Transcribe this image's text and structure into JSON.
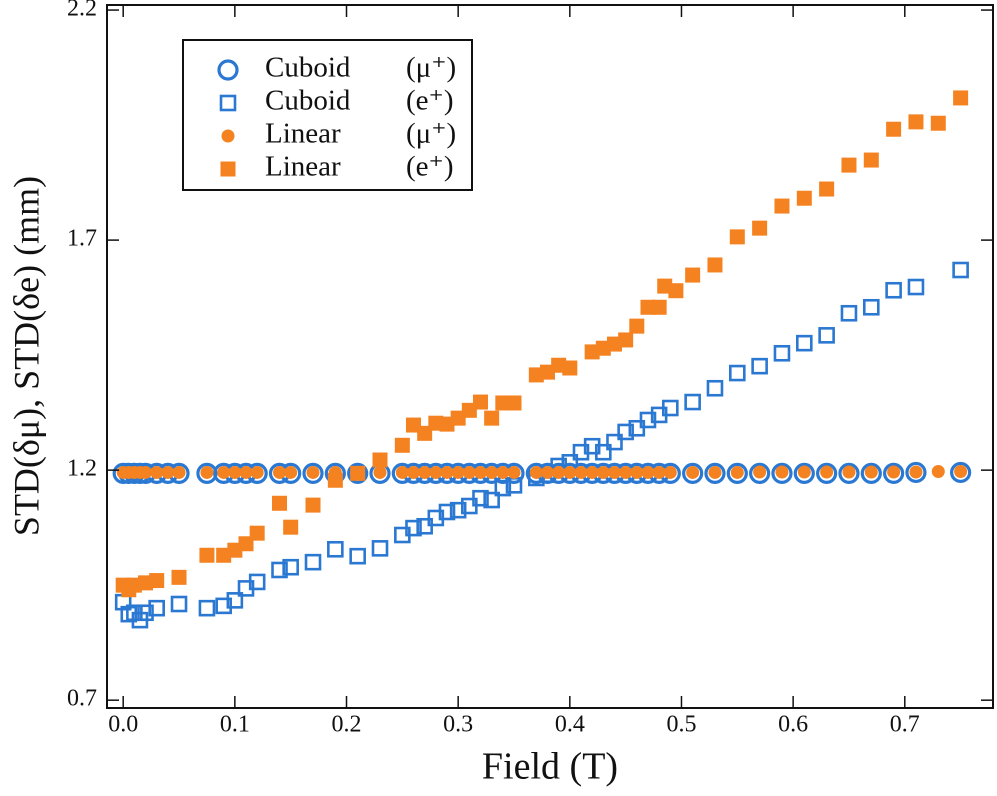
{
  "chart_data": {
    "type": "scatter",
    "xlabel": "Field (T)",
    "ylabel": "STD(δμ), STD(δe) (mm)",
    "xlim": [
      -0.0145,
      0.779
    ],
    "ylim": [
      0.683,
      2.211
    ],
    "xticks": [
      {
        "value": 0,
        "label": "0.0"
      },
      0.1,
      0.2,
      0.3,
      0.4,
      0.5,
      0.6,
      0.7
    ],
    "yticks": [
      0.7,
      1.2,
      1.7,
      2.2
    ],
    "legend": "upper left",
    "series": [
      {
        "name": "Cuboid",
        "particle": "(e⁺)",
        "color": "#2a78d2",
        "marker": "square",
        "filled": false,
        "x": [
          0,
          0.005,
          0.01,
          0.015,
          0.02,
          0.03,
          0.05,
          0.075,
          0.09,
          0.1,
          0.11,
          0.12,
          0.14,
          0.15,
          0.17,
          0.19,
          0.21,
          0.23,
          0.25,
          0.26,
          0.27,
          0.28,
          0.29,
          0.3,
          0.31,
          0.32,
          0.33,
          0.34,
          0.35,
          0.37,
          0.38,
          0.39,
          0.4,
          0.41,
          0.42,
          0.43,
          0.44,
          0.45,
          0.46,
          0.47,
          0.48,
          0.49,
          0.51,
          0.53,
          0.55,
          0.57,
          0.59,
          0.61,
          0.63,
          0.65,
          0.67,
          0.69,
          0.71,
          0.75
        ],
        "values": [
          0.913,
          0.887,
          0.89,
          0.874,
          0.89,
          0.9,
          0.909,
          0.9,
          0.905,
          0.917,
          0.943,
          0.957,
          0.983,
          0.989,
          1.0,
          1.028,
          1.013,
          1.03,
          1.059,
          1.074,
          1.078,
          1.096,
          1.109,
          1.113,
          1.122,
          1.139,
          1.135,
          1.161,
          1.167,
          1.183,
          1.19,
          1.209,
          1.217,
          1.239,
          1.252,
          1.239,
          1.261,
          1.283,
          1.291,
          1.309,
          1.32,
          1.335,
          1.348,
          1.378,
          1.411,
          1.426,
          1.454,
          1.476,
          1.493,
          1.541,
          1.554,
          1.591,
          1.598,
          1.635
        ]
      },
      {
        "name": "Cuboid",
        "particle": "(μ⁺)",
        "color": "#2a78d2",
        "marker": "circle",
        "filled": false,
        "x": [
          0,
          0.005,
          0.01,
          0.015,
          0.02,
          0.03,
          0.04,
          0.05,
          0.075,
          0.09,
          0.1,
          0.11,
          0.12,
          0.14,
          0.15,
          0.17,
          0.19,
          0.21,
          0.23,
          0.25,
          0.26,
          0.27,
          0.28,
          0.29,
          0.3,
          0.31,
          0.32,
          0.33,
          0.34,
          0.35,
          0.37,
          0.38,
          0.39,
          0.4,
          0.41,
          0.42,
          0.43,
          0.44,
          0.45,
          0.46,
          0.47,
          0.48,
          0.49,
          0.51,
          0.53,
          0.55,
          0.57,
          0.59,
          0.61,
          0.63,
          0.65,
          0.67,
          0.69,
          0.71,
          0.75
        ],
        "values": [
          1.193,
          1.193,
          1.193,
          1.193,
          1.193,
          1.193,
          1.193,
          1.193,
          1.193,
          1.193,
          1.193,
          1.193,
          1.193,
          1.193,
          1.193,
          1.193,
          1.193,
          1.193,
          1.193,
          1.193,
          1.193,
          1.193,
          1.193,
          1.193,
          1.193,
          1.193,
          1.193,
          1.193,
          1.193,
          1.193,
          1.193,
          1.193,
          1.193,
          1.193,
          1.193,
          1.193,
          1.193,
          1.193,
          1.193,
          1.193,
          1.193,
          1.193,
          1.193,
          1.193,
          1.193,
          1.193,
          1.193,
          1.193,
          1.193,
          1.193,
          1.193,
          1.193,
          1.193,
          1.195,
          1.195
        ]
      },
      {
        "name": "Linear",
        "particle": "(μ⁺)",
        "color": "#f58220",
        "marker": "circle",
        "filled": true,
        "x": [
          0,
          0.005,
          0.01,
          0.015,
          0.02,
          0.03,
          0.04,
          0.05,
          0.075,
          0.09,
          0.1,
          0.11,
          0.12,
          0.14,
          0.15,
          0.17,
          0.19,
          0.21,
          0.23,
          0.25,
          0.26,
          0.27,
          0.28,
          0.29,
          0.3,
          0.31,
          0.32,
          0.33,
          0.34,
          0.35,
          0.37,
          0.38,
          0.39,
          0.4,
          0.41,
          0.42,
          0.43,
          0.44,
          0.45,
          0.46,
          0.47,
          0.48,
          0.49,
          0.51,
          0.53,
          0.55,
          0.57,
          0.59,
          0.61,
          0.63,
          0.65,
          0.67,
          0.69,
          0.71,
          0.73,
          0.75
        ],
        "values": [
          1.195,
          1.195,
          1.195,
          1.195,
          1.195,
          1.195,
          1.195,
          1.195,
          1.195,
          1.195,
          1.195,
          1.195,
          1.195,
          1.195,
          1.195,
          1.195,
          1.195,
          1.195,
          1.195,
          1.195,
          1.195,
          1.195,
          1.195,
          1.195,
          1.195,
          1.195,
          1.195,
          1.195,
          1.195,
          1.195,
          1.195,
          1.195,
          1.195,
          1.195,
          1.195,
          1.195,
          1.195,
          1.195,
          1.195,
          1.195,
          1.195,
          1.195,
          1.195,
          1.195,
          1.195,
          1.195,
          1.196,
          1.196,
          1.196,
          1.196,
          1.196,
          1.196,
          1.196,
          1.196,
          1.197,
          1.197
        ]
      },
      {
        "name": "Linear",
        "particle": "(e⁺)",
        "color": "#f58220",
        "marker": "square",
        "filled": true,
        "x": [
          0,
          0.005,
          0.01,
          0.02,
          0.03,
          0.05,
          0.075,
          0.09,
          0.1,
          0.11,
          0.12,
          0.14,
          0.15,
          0.17,
          0.19,
          0.21,
          0.23,
          0.25,
          0.26,
          0.27,
          0.28,
          0.29,
          0.3,
          0.31,
          0.32,
          0.33,
          0.34,
          0.35,
          0.37,
          0.38,
          0.39,
          0.4,
          0.42,
          0.43,
          0.44,
          0.45,
          0.46,
          0.47,
          0.48,
          0.485,
          0.495,
          0.51,
          0.53,
          0.55,
          0.57,
          0.59,
          0.61,
          0.63,
          0.65,
          0.67,
          0.69,
          0.71,
          0.73,
          0.75
        ],
        "values": [
          0.95,
          0.94,
          0.95,
          0.955,
          0.96,
          0.967,
          1.015,
          1.015,
          1.026,
          1.04,
          1.063,
          1.128,
          1.076,
          1.124,
          1.178,
          1.193,
          1.222,
          1.254,
          1.298,
          1.28,
          1.302,
          1.3,
          1.313,
          1.33,
          1.348,
          1.313,
          1.346,
          1.346,
          1.407,
          1.413,
          1.428,
          1.422,
          1.457,
          1.465,
          1.474,
          1.483,
          1.513,
          1.554,
          1.554,
          1.6,
          1.59,
          1.624,
          1.646,
          1.707,
          1.726,
          1.774,
          1.791,
          1.811,
          1.863,
          1.874,
          1.941,
          1.957,
          1.954,
          2.009
        ]
      }
    ]
  }
}
